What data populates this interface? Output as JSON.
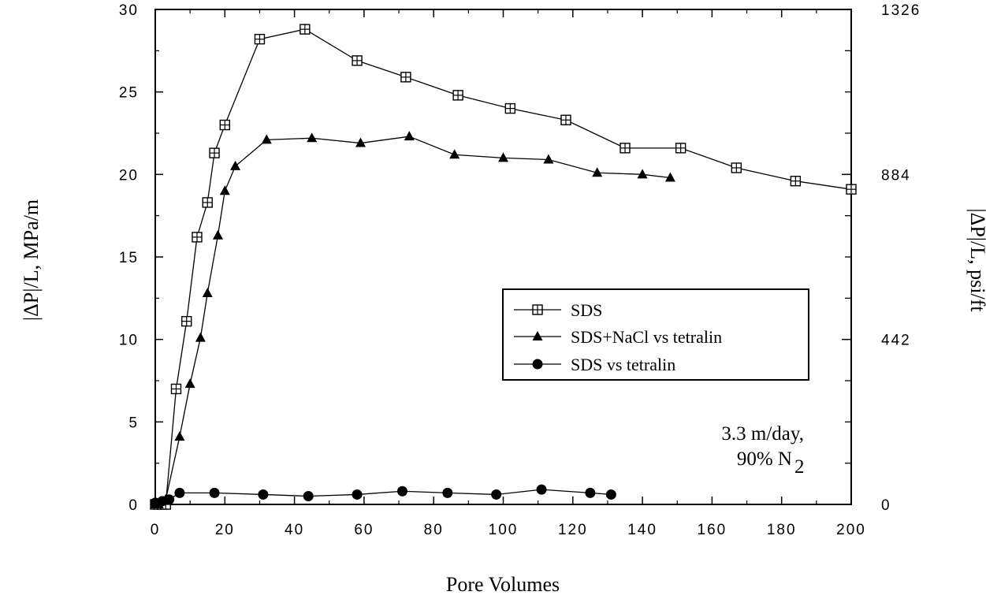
{
  "chart_data": {
    "type": "line",
    "xlabel": "Pore Volumes",
    "ylabel": "|ΔP|/L, MPa/m",
    "y2label": "|ΔP|/L, psi/ft",
    "xlim": [
      0,
      200
    ],
    "ylim": [
      0,
      30
    ],
    "x_ticks": [
      "0",
      "20",
      "40",
      "60",
      "80",
      "100",
      "120",
      "140",
      "160",
      "180",
      "200"
    ],
    "y_ticks": [
      "0",
      "5",
      "10",
      "15",
      "20",
      "25",
      "30"
    ],
    "y2_ticks": [
      {
        "value": 0,
        "label": "0"
      },
      {
        "value": 10,
        "label": "442"
      },
      {
        "value": 20,
        "label": "884"
      },
      {
        "value": 30,
        "label": "1326"
      }
    ],
    "grid": false,
    "legend": "center-right",
    "annotation": {
      "line1": "3.3 m/day,",
      "line2": "90% N",
      "line2_sub": "2"
    },
    "series": [
      {
        "name": "SDS",
        "marker": "square-cross",
        "x": [
          0,
          1,
          2,
          3,
          6,
          9,
          12,
          15,
          17,
          20,
          30,
          43,
          58,
          72,
          87,
          102,
          118,
          135,
          151,
          167,
          184,
          200
        ],
        "y": [
          0,
          0,
          0,
          0,
          7.0,
          11.1,
          16.2,
          18.3,
          21.3,
          23.0,
          28.2,
          28.8,
          26.9,
          25.9,
          24.8,
          24.0,
          23.3,
          21.6,
          21.6,
          20.4,
          19.6,
          19.1
        ]
      },
      {
        "name": "SDS+NaCl vs tetralin",
        "marker": "triangle",
        "x": [
          0,
          1,
          3,
          7,
          10,
          13,
          15,
          18,
          20,
          23,
          32,
          45,
          59,
          73,
          86,
          100,
          113,
          127,
          140,
          148
        ],
        "y": [
          0,
          0,
          0.3,
          4.1,
          7.3,
          10.1,
          12.8,
          16.3,
          19.0,
          20.5,
          22.1,
          22.2,
          21.9,
          22.3,
          21.2,
          21.0,
          20.9,
          20.1,
          20.0,
          19.8
        ]
      },
      {
        "name": "SDS vs tetralin",
        "marker": "circle",
        "x": [
          0,
          2,
          4,
          7,
          17,
          31,
          44,
          58,
          71,
          84,
          98,
          111,
          125,
          131
        ],
        "y": [
          0.1,
          0.2,
          0.3,
          0.7,
          0.7,
          0.6,
          0.5,
          0.6,
          0.8,
          0.7,
          0.6,
          0.9,
          0.7,
          0.6
        ]
      }
    ]
  }
}
